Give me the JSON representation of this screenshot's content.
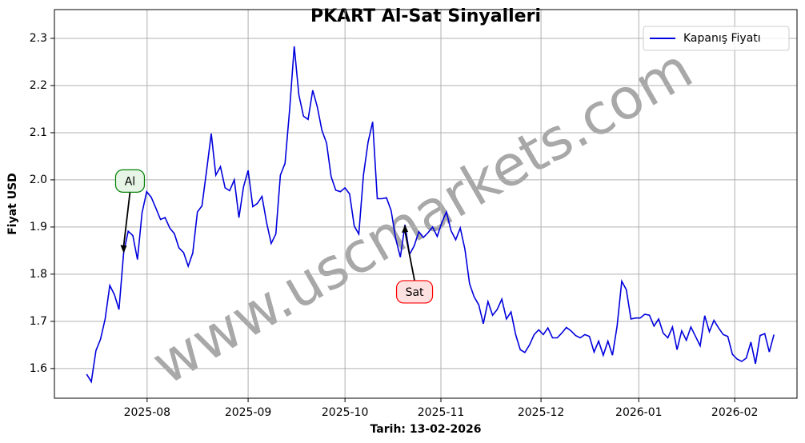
{
  "chart_data": {
    "type": "line",
    "title": "PKART Al-Sat Sinyalleri",
    "xlabel": "Tarih: 13-02-2026",
    "ylabel": "Fiyat USD",
    "watermark": "www.uscmarkets.com",
    "legend": "upper right",
    "grid": true,
    "series": [
      {
        "name": "Kapanış Fiyatı",
        "color": "#0000dd",
        "values": [
          1.588,
          1.572,
          1.638,
          1.662,
          1.705,
          1.776,
          1.757,
          1.725,
          1.845,
          1.891,
          1.882,
          1.831,
          1.93,
          1.975,
          1.963,
          1.94,
          1.916,
          1.92,
          1.898,
          1.886,
          1.856,
          1.846,
          1.817,
          1.845,
          1.932,
          1.945,
          2.02,
          2.098,
          2.01,
          2.028,
          1.983,
          1.977,
          2.0,
          1.92,
          1.985,
          2.02,
          1.943,
          1.95,
          1.965,
          1.91,
          1.865,
          1.885,
          2.01,
          2.035,
          2.15,
          2.283,
          2.18,
          2.135,
          2.128,
          2.19,
          2.155,
          2.105,
          2.078,
          2.007,
          1.978,
          1.975,
          1.983,
          1.97,
          1.902,
          1.885,
          2.01,
          2.08,
          2.123,
          1.96,
          1.96,
          1.962,
          1.935,
          1.875,
          1.836,
          1.905,
          1.842,
          1.86,
          1.89,
          1.878,
          1.888,
          1.9,
          1.88,
          1.91,
          1.932,
          1.892,
          1.873,
          1.898,
          1.853,
          1.78,
          1.752,
          1.735,
          1.695,
          1.742,
          1.713,
          1.725,
          1.747,
          1.705,
          1.72,
          1.672,
          1.64,
          1.634,
          1.65,
          1.672,
          1.682,
          1.672,
          1.686,
          1.665,
          1.665,
          1.675,
          1.687,
          1.68,
          1.67,
          1.665,
          1.672,
          1.668,
          1.635,
          1.658,
          1.628,
          1.658,
          1.628,
          1.69,
          1.785,
          1.767,
          1.705,
          1.707,
          1.707,
          1.715,
          1.713,
          1.69,
          1.705,
          1.675,
          1.665,
          1.688,
          1.64,
          1.68,
          1.66,
          1.688,
          1.668,
          1.648,
          1.712,
          1.678,
          1.702,
          1.686,
          1.672,
          1.668,
          1.63,
          1.62,
          1.615,
          1.622,
          1.656,
          1.61,
          1.67,
          1.674,
          1.635,
          1.672
        ]
      }
    ],
    "annotations": [
      {
        "text": "Al",
        "x": 8,
        "color": "#008000",
        "fill": "#e6f5e6"
      },
      {
        "text": "Sat",
        "x": 69,
        "color": "#ff0000",
        "fill": "#fde0e0"
      }
    ],
    "xlim": [
      -7,
      154
    ],
    "xticks": [
      {
        "value": 13.1,
        "label": "2025-08"
      },
      {
        "value": 35,
        "label": "2025-09"
      },
      {
        "value": 56,
        "label": "2025-10"
      },
      {
        "value": 76.8,
        "label": "2025-11"
      },
      {
        "value": 98.5,
        "label": "2025-12"
      },
      {
        "value": 119.7,
        "label": "2026-01"
      },
      {
        "value": 140.5,
        "label": "2026-02"
      }
    ],
    "ylim": [
      1.537,
      2.361
    ],
    "yticks": [
      1.6,
      1.7,
      1.8,
      1.9,
      {
        "value": 2,
        "label": "2.0"
      },
      2.1,
      2.2,
      2.3
    ]
  }
}
